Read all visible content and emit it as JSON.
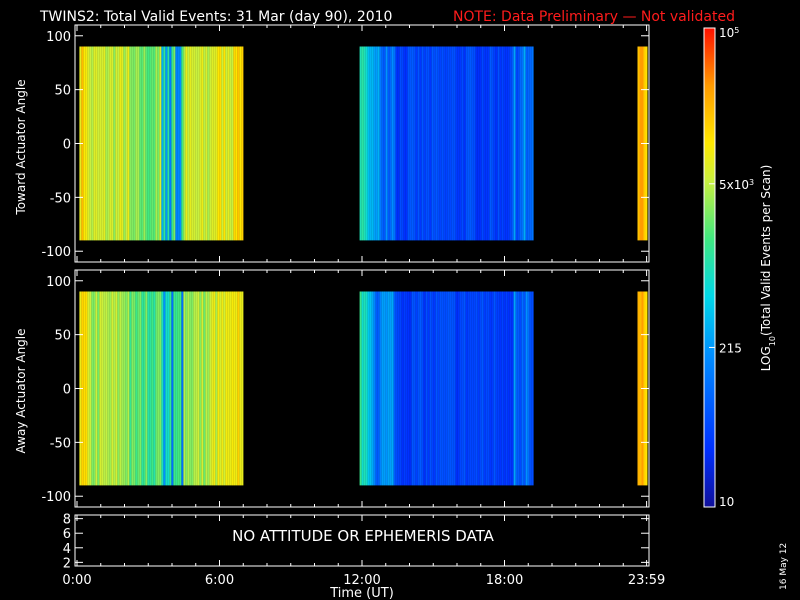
{
  "header": {
    "title": "TWINS2: Total Valid Events: 31 Mar (day  90), 2010",
    "note": "NOTE: Data Preliminary — Not validated"
  },
  "footer": {
    "date_stamp": "16 May 12"
  },
  "colors": {
    "background": "#000000",
    "axes": "#ffffff",
    "note": "#ff1c1c"
  },
  "chart_data": [
    {
      "type": "heatmap",
      "panel": "top",
      "ylabel": "Toward Actuator Angle",
      "xlim": [
        0,
        24
      ],
      "ylim": [
        -110,
        110
      ],
      "yticks": [
        100,
        50,
        0,
        -50,
        -100
      ],
      "data_y_range": [
        -90,
        90
      ],
      "color_scale": "log",
      "data_segments": [
        {
          "x_start": 0.1,
          "x_end": 7.0,
          "level": 0.68,
          "description": "yellow-orange band with greenish/blue streaks near 3.5–4.3 h"
        },
        {
          "x_start": 11.9,
          "x_end": 19.2,
          "level": 0.22,
          "description": "green edge at start, mostly blue; faint green near upper-left"
        },
        {
          "x_start": 23.6,
          "x_end": 23.98,
          "level": 0.82,
          "description": "orange strip"
        }
      ]
    },
    {
      "type": "heatmap",
      "panel": "middle",
      "ylabel": "Away Actuator Angle",
      "xlim": [
        0,
        24
      ],
      "ylim": [
        -110,
        110
      ],
      "yticks": [
        100,
        50,
        0,
        -50,
        -100
      ],
      "data_y_range": [
        -90,
        90
      ],
      "color_scale": "log",
      "data_segments": [
        {
          "x_start": 0.1,
          "x_end": 7.0,
          "level": 0.65
        },
        {
          "x_start": 11.9,
          "x_end": 19.2,
          "level": 0.2
        },
        {
          "x_start": 23.6,
          "x_end": 23.98,
          "level": 0.82
        }
      ]
    },
    {
      "type": "line",
      "panel": "bottom",
      "xlabel": "Time (UT)",
      "xlim": [
        0,
        24
      ],
      "ylim": [
        1.5,
        8.5
      ],
      "yticks": [
        8,
        6,
        4,
        2
      ],
      "xticks": [
        {
          "value": 0,
          "label": "0:00"
        },
        {
          "value": 6,
          "label": "6:00"
        },
        {
          "value": 12,
          "label": "12:00"
        },
        {
          "value": 18,
          "label": "18:00"
        },
        {
          "value": 23.983,
          "label": "23:59"
        }
      ],
      "annotation": "NO ATTITUDE OR EPHEMERIS DATA",
      "series": []
    },
    {
      "type": "colorbar",
      "label_parts": [
        "LOG",
        "10",
        "(Total Valid  Events per Scan)"
      ],
      "scale": "log",
      "range": [
        10,
        100000
      ],
      "ticks": [
        {
          "value": 100000,
          "label": "10",
          "sup": "5"
        },
        {
          "value": 5000,
          "label": "5x10",
          "sup": "3"
        },
        {
          "value": 215,
          "label": "215"
        },
        {
          "value": 10,
          "label": "10"
        }
      ]
    }
  ]
}
